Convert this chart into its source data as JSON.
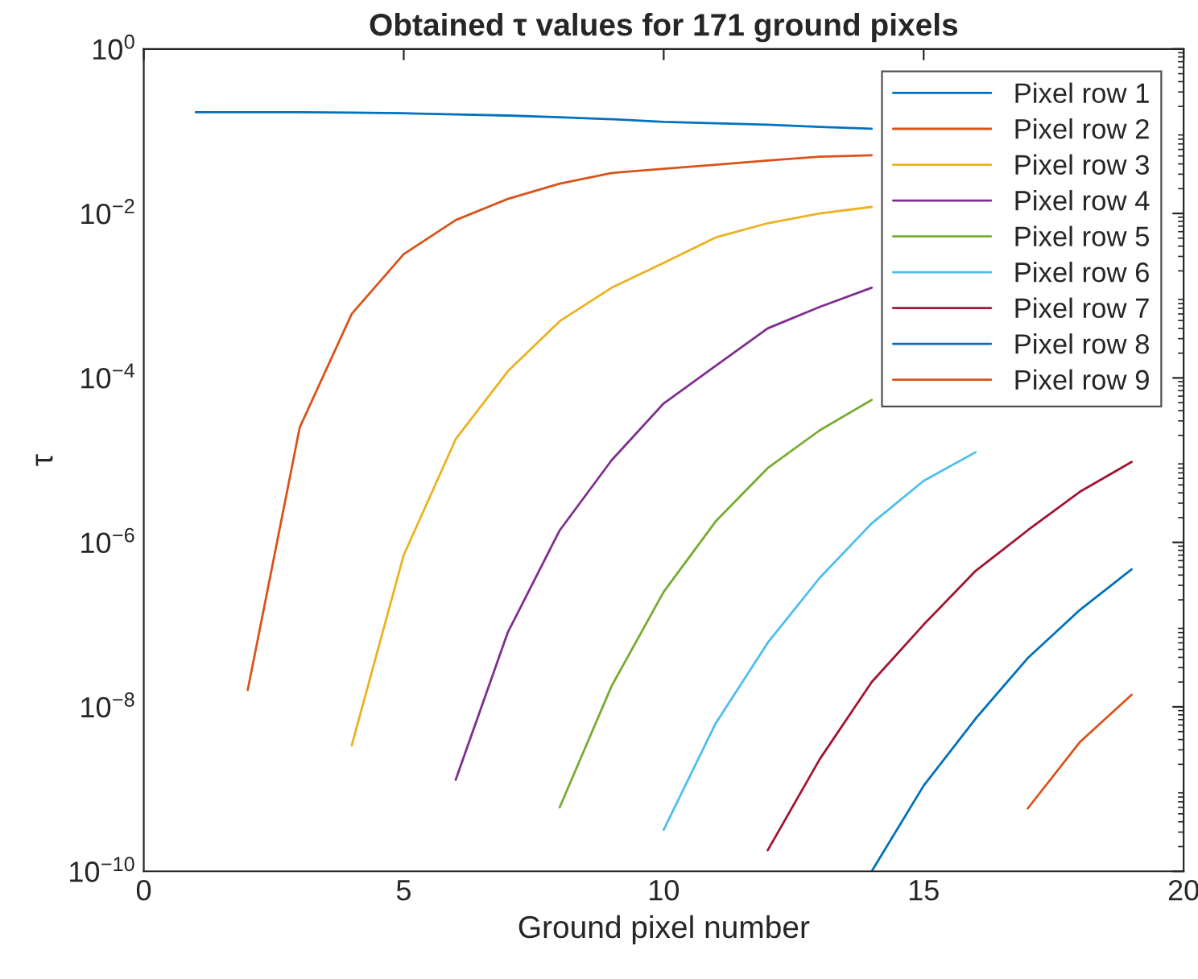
{
  "chart_data": {
    "type": "line",
    "title": "Obtained τ values for 171 ground pixels",
    "xlabel": "Ground pixel number",
    "ylabel": "τ",
    "log": "y",
    "x": [
      1,
      2,
      3,
      4,
      5,
      6,
      7,
      8,
      9,
      10,
      11,
      12,
      13,
      14,
      15,
      16,
      17,
      18,
      19
    ],
    "series": [
      {
        "name": "Pixel row 1",
        "color": "#0072bd",
        "values": [
          0.17,
          0.17,
          0.17,
          0.168,
          0.165,
          0.16,
          0.155,
          0.148,
          0.14,
          0.13,
          0.125,
          0.12,
          0.113,
          0.107,
          null,
          null,
          null,
          null,
          null
        ]
      },
      {
        "name": "Pixel row 2",
        "color": "#d95319",
        "values": [
          null,
          1.6e-08,
          2.5e-05,
          0.0006,
          0.0032,
          0.0083,
          0.015,
          0.023,
          0.031,
          0.035,
          0.039,
          0.044,
          0.049,
          0.051,
          null,
          null,
          null,
          null,
          null
        ]
      },
      {
        "name": "Pixel row 3",
        "color": "#edb120",
        "values": [
          null,
          null,
          null,
          3.4e-09,
          7e-07,
          1.8e-05,
          0.00012,
          0.00049,
          0.00125,
          0.0025,
          0.0051,
          0.0076,
          0.01,
          0.012,
          null,
          null,
          null,
          null,
          null
        ]
      },
      {
        "name": "Pixel row 4",
        "color": "#7e2f8e",
        "values": [
          null,
          null,
          null,
          null,
          null,
          1.3e-09,
          8e-08,
          1.4e-06,
          1e-05,
          4.9e-05,
          0.00014,
          0.0004,
          0.00073,
          0.00125,
          null,
          null,
          null,
          null,
          null
        ]
      },
      {
        "name": "Pixel row 5",
        "color": "#77ac30",
        "values": [
          null,
          null,
          null,
          null,
          null,
          null,
          null,
          6e-10,
          1.8e-08,
          2.5e-07,
          1.8e-06,
          8e-06,
          2.3e-05,
          5.4e-05,
          null,
          null,
          null,
          null,
          null
        ]
      },
      {
        "name": "Pixel row 6",
        "color": "#4dbeee",
        "values": [
          null,
          null,
          null,
          null,
          null,
          null,
          null,
          null,
          null,
          3.2e-10,
          6.3e-09,
          6e-08,
          3.7e-07,
          1.7e-06,
          5.6e-06,
          1.25e-05,
          null,
          null,
          null
        ]
      },
      {
        "name": "Pixel row 7",
        "color": "#a2142f",
        "values": [
          null,
          null,
          null,
          null,
          null,
          null,
          null,
          null,
          null,
          null,
          null,
          1.8e-10,
          2.3e-09,
          2e-08,
          1e-07,
          4.5e-07,
          1.4e-06,
          4.1e-06,
          9.5e-06
        ]
      },
      {
        "name": "Pixel row 8",
        "color": "#0072bd",
        "values": [
          null,
          null,
          null,
          null,
          null,
          null,
          null,
          null,
          null,
          null,
          null,
          null,
          null,
          1e-10,
          1.1e-09,
          7.2e-09,
          3.9e-08,
          1.5e-07,
          4.7e-07
        ]
      },
      {
        "name": "Pixel row 9",
        "color": "#d95319",
        "values": [
          null,
          null,
          null,
          null,
          null,
          null,
          null,
          null,
          null,
          null,
          null,
          null,
          null,
          null,
          null,
          null,
          5.8e-10,
          3.7e-09,
          1.4e-08
        ]
      }
    ],
    "xlim": [
      0,
      20
    ],
    "xticks": [
      0,
      5,
      10,
      15,
      20
    ],
    "ylim": [
      1e-10,
      1
    ],
    "yticks": [
      {
        "value": 1e-10,
        "label": "10$^{−10}$"
      },
      {
        "value": 1e-08,
        "label": "10$^{−8}$"
      },
      {
        "value": 1e-06,
        "label": "10$^{−6}$"
      },
      {
        "value": 0.0001,
        "label": "10$^{−4}$"
      },
      {
        "value": 0.01,
        "label": "10$^{−2}$"
      },
      {
        "value": 1,
        "label": "10$^{0}$"
      }
    ],
    "legend": "top right",
    "grid": false
  }
}
